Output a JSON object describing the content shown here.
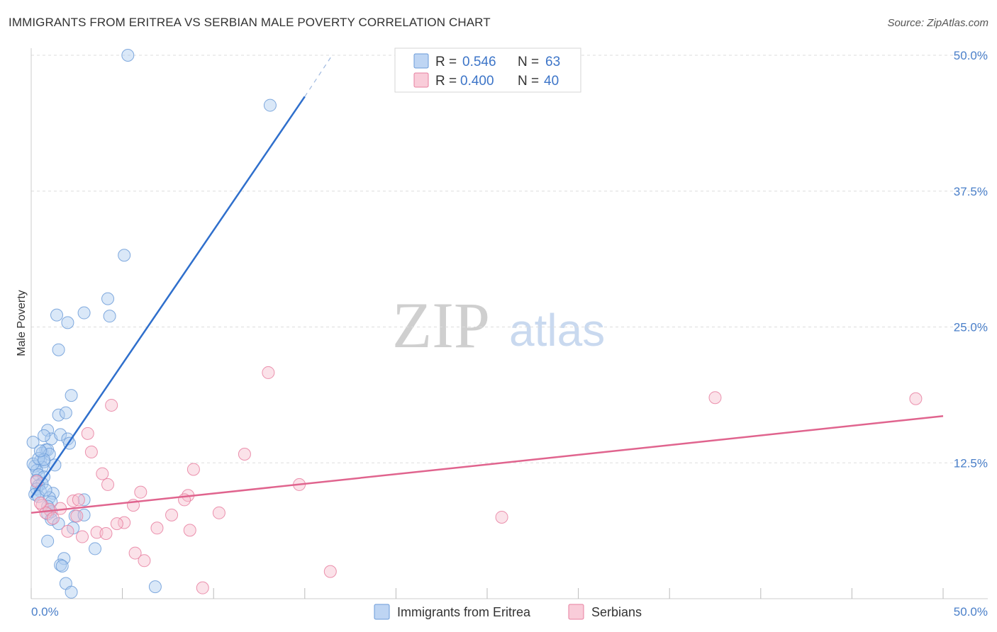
{
  "header": {
    "title": "IMMIGRANTS FROM ERITREA VS SERBIAN MALE POVERTY CORRELATION CHART",
    "source": "Source: ZipAtlas.com"
  },
  "colors": {
    "blue": "#6b9bd8",
    "blue_fill": "#aecbf0",
    "blue_line": "#2f6fcc",
    "pink": "#e77fa0",
    "pink_fill": "#f7bfcf",
    "pink_line": "#e0648e",
    "tick_text": "#4a7fc9"
  },
  "watermark": {
    "zip": "ZIP",
    "atlas": "atlas"
  },
  "chart_data": {
    "type": "scatter",
    "title": "IMMIGRANTS FROM ERITREA VS SERBIAN MALE POVERTY CORRELATION CHART",
    "xlabel": "",
    "ylabel": "Male Poverty",
    "xlim": [
      0,
      50
    ],
    "ylim": [
      0,
      50
    ],
    "x_tick_labels": [
      "0.0%",
      "50.0%"
    ],
    "y_tick_labels": [
      "12.5%",
      "25.0%",
      "37.5%",
      "50.0%"
    ],
    "y_ticks": [
      12.5,
      25.0,
      37.5,
      50.0
    ],
    "legend_stats": [
      {
        "r_label": "R =",
        "r_value": "0.546",
        "n_label": "N =",
        "n_value": "63"
      },
      {
        "r_label": "R =",
        "r_value": "0.400",
        "n_label": "N =",
        "n_value": "40"
      }
    ],
    "series": [
      {
        "name": "Immigrants from Eritrea",
        "trend": {
          "x": [
            0.0,
            15.0
          ],
          "y": [
            9.3,
            46.2
          ],
          "dash_to": [
            16.5,
            50.0
          ]
        },
        "points": [
          [
            5.3,
            50.0
          ],
          [
            13.1,
            45.4
          ],
          [
            5.1,
            31.6
          ],
          [
            4.2,
            27.6
          ],
          [
            4.3,
            26.0
          ],
          [
            2.9,
            26.3
          ],
          [
            1.4,
            26.1
          ],
          [
            2.0,
            25.4
          ],
          [
            1.5,
            22.9
          ],
          [
            2.2,
            18.7
          ],
          [
            1.5,
            16.9
          ],
          [
            1.9,
            17.1
          ],
          [
            0.9,
            15.5
          ],
          [
            1.1,
            14.7
          ],
          [
            1.6,
            15.1
          ],
          [
            2.0,
            14.7
          ],
          [
            2.1,
            14.3
          ],
          [
            0.7,
            15.0
          ],
          [
            0.1,
            14.4
          ],
          [
            0.8,
            13.7
          ],
          [
            0.6,
            13.4
          ],
          [
            0.9,
            13.7
          ],
          [
            1.0,
            13.3
          ],
          [
            0.5,
            12.7
          ],
          [
            0.7,
            12.6
          ],
          [
            0.6,
            12.1
          ],
          [
            0.2,
            12.2
          ],
          [
            0.3,
            11.8
          ],
          [
            1.3,
            12.3
          ],
          [
            0.4,
            11.4
          ],
          [
            0.7,
            11.2
          ],
          [
            0.3,
            10.9
          ],
          [
            0.6,
            10.6
          ],
          [
            0.4,
            10.4
          ],
          [
            0.3,
            10.1
          ],
          [
            0.5,
            9.9
          ],
          [
            1.2,
            9.7
          ],
          [
            0.2,
            9.6
          ],
          [
            0.4,
            9.4
          ],
          [
            1.0,
            9.3
          ],
          [
            1.1,
            8.9
          ],
          [
            0.9,
            8.5
          ],
          [
            1.1,
            8.0
          ],
          [
            0.9,
            7.8
          ],
          [
            1.1,
            7.3
          ],
          [
            1.5,
            6.9
          ],
          [
            2.3,
            6.5
          ],
          [
            2.4,
            7.6
          ],
          [
            2.9,
            7.7
          ],
          [
            2.9,
            9.1
          ],
          [
            0.9,
            5.3
          ],
          [
            1.8,
            3.7
          ],
          [
            1.6,
            3.1
          ],
          [
            1.7,
            3.0
          ],
          [
            3.5,
            4.6
          ],
          [
            1.9,
            1.4
          ],
          [
            2.2,
            0.6
          ],
          [
            6.8,
            1.1
          ],
          [
            0.1,
            12.4
          ],
          [
            0.4,
            12.9
          ],
          [
            0.7,
            12.8
          ],
          [
            0.5,
            13.6
          ],
          [
            0.8,
            10.0
          ]
        ]
      },
      {
        "name": "Serbians",
        "trend": {
          "x": [
            0.0,
            50.0
          ],
          "y": [
            7.9,
            16.8
          ]
        },
        "points": [
          [
            13.0,
            20.8
          ],
          [
            37.5,
            18.5
          ],
          [
            48.5,
            18.4
          ],
          [
            4.4,
            17.8
          ],
          [
            3.1,
            15.2
          ],
          [
            11.7,
            13.3
          ],
          [
            3.3,
            13.5
          ],
          [
            8.9,
            11.9
          ],
          [
            3.9,
            11.5
          ],
          [
            4.2,
            10.5
          ],
          [
            14.7,
            10.5
          ],
          [
            6.0,
            9.8
          ],
          [
            8.6,
            9.5
          ],
          [
            8.4,
            9.1
          ],
          [
            2.3,
            9.0
          ],
          [
            2.6,
            9.1
          ],
          [
            5.6,
            8.6
          ],
          [
            0.6,
            8.6
          ],
          [
            1.0,
            8.2
          ],
          [
            1.6,
            8.3
          ],
          [
            10.3,
            7.9
          ],
          [
            0.8,
            7.9
          ],
          [
            7.7,
            7.7
          ],
          [
            2.5,
            7.6
          ],
          [
            1.2,
            7.4
          ],
          [
            25.8,
            7.5
          ],
          [
            5.1,
            7.0
          ],
          [
            4.7,
            6.9
          ],
          [
            6.9,
            6.5
          ],
          [
            8.7,
            6.3
          ],
          [
            2.0,
            6.2
          ],
          [
            3.6,
            6.1
          ],
          [
            4.1,
            6.0
          ],
          [
            2.8,
            5.7
          ],
          [
            5.7,
            4.2
          ],
          [
            6.2,
            3.5
          ],
          [
            16.4,
            2.5
          ],
          [
            9.4,
            1.0
          ],
          [
            0.3,
            10.8
          ],
          [
            0.5,
            8.8
          ]
        ]
      }
    ],
    "legend": [
      "Immigrants from Eritrea",
      "Serbians"
    ]
  }
}
